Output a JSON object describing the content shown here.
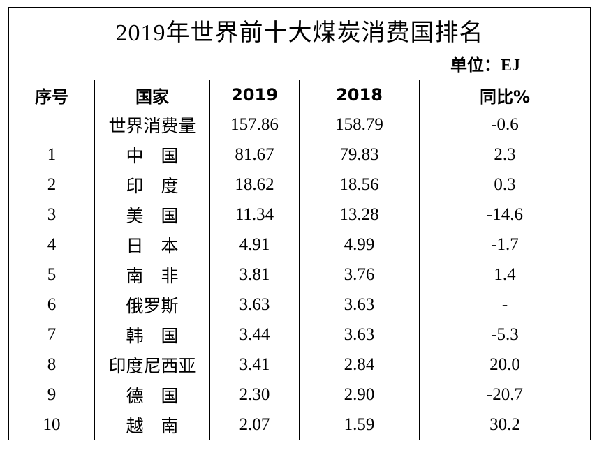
{
  "title": "2019年世界前十大煤炭消费国排名",
  "unit": "单位：EJ",
  "table": {
    "header": [
      "序号",
      "国家",
      "2019",
      "2018",
      "同比%"
    ],
    "rows": [
      [
        null,
        "世界消费量",
        "157.86",
        "158.79",
        "-0.6"
      ],
      [
        "1",
        "中　国",
        "81.67",
        "79.83",
        "2.3"
      ],
      [
        "2",
        "印　度",
        "18.62",
        "18.56",
        "0.3"
      ],
      [
        "3",
        "美　国",
        "11.34",
        "13.28",
        "-14.6"
      ],
      [
        "4",
        "日　本",
        "4.91",
        "4.99",
        "-1.7"
      ],
      [
        "5",
        "南　非",
        "3.81",
        "3.76",
        "1.4"
      ],
      [
        "6",
        "俄罗斯",
        "3.63",
        "3.63",
        "-"
      ],
      [
        "7",
        "韩　国",
        "3.44",
        "3.63",
        "-5.3"
      ],
      [
        "8",
        "印度尼西亚",
        "3.41",
        "2.84",
        "20.0"
      ],
      [
        "9",
        "德　国",
        "2.30",
        "2.90",
        "-20.7"
      ],
      [
        "10",
        "越　南",
        "2.07",
        "1.59",
        "30.2"
      ]
    ]
  }
}
